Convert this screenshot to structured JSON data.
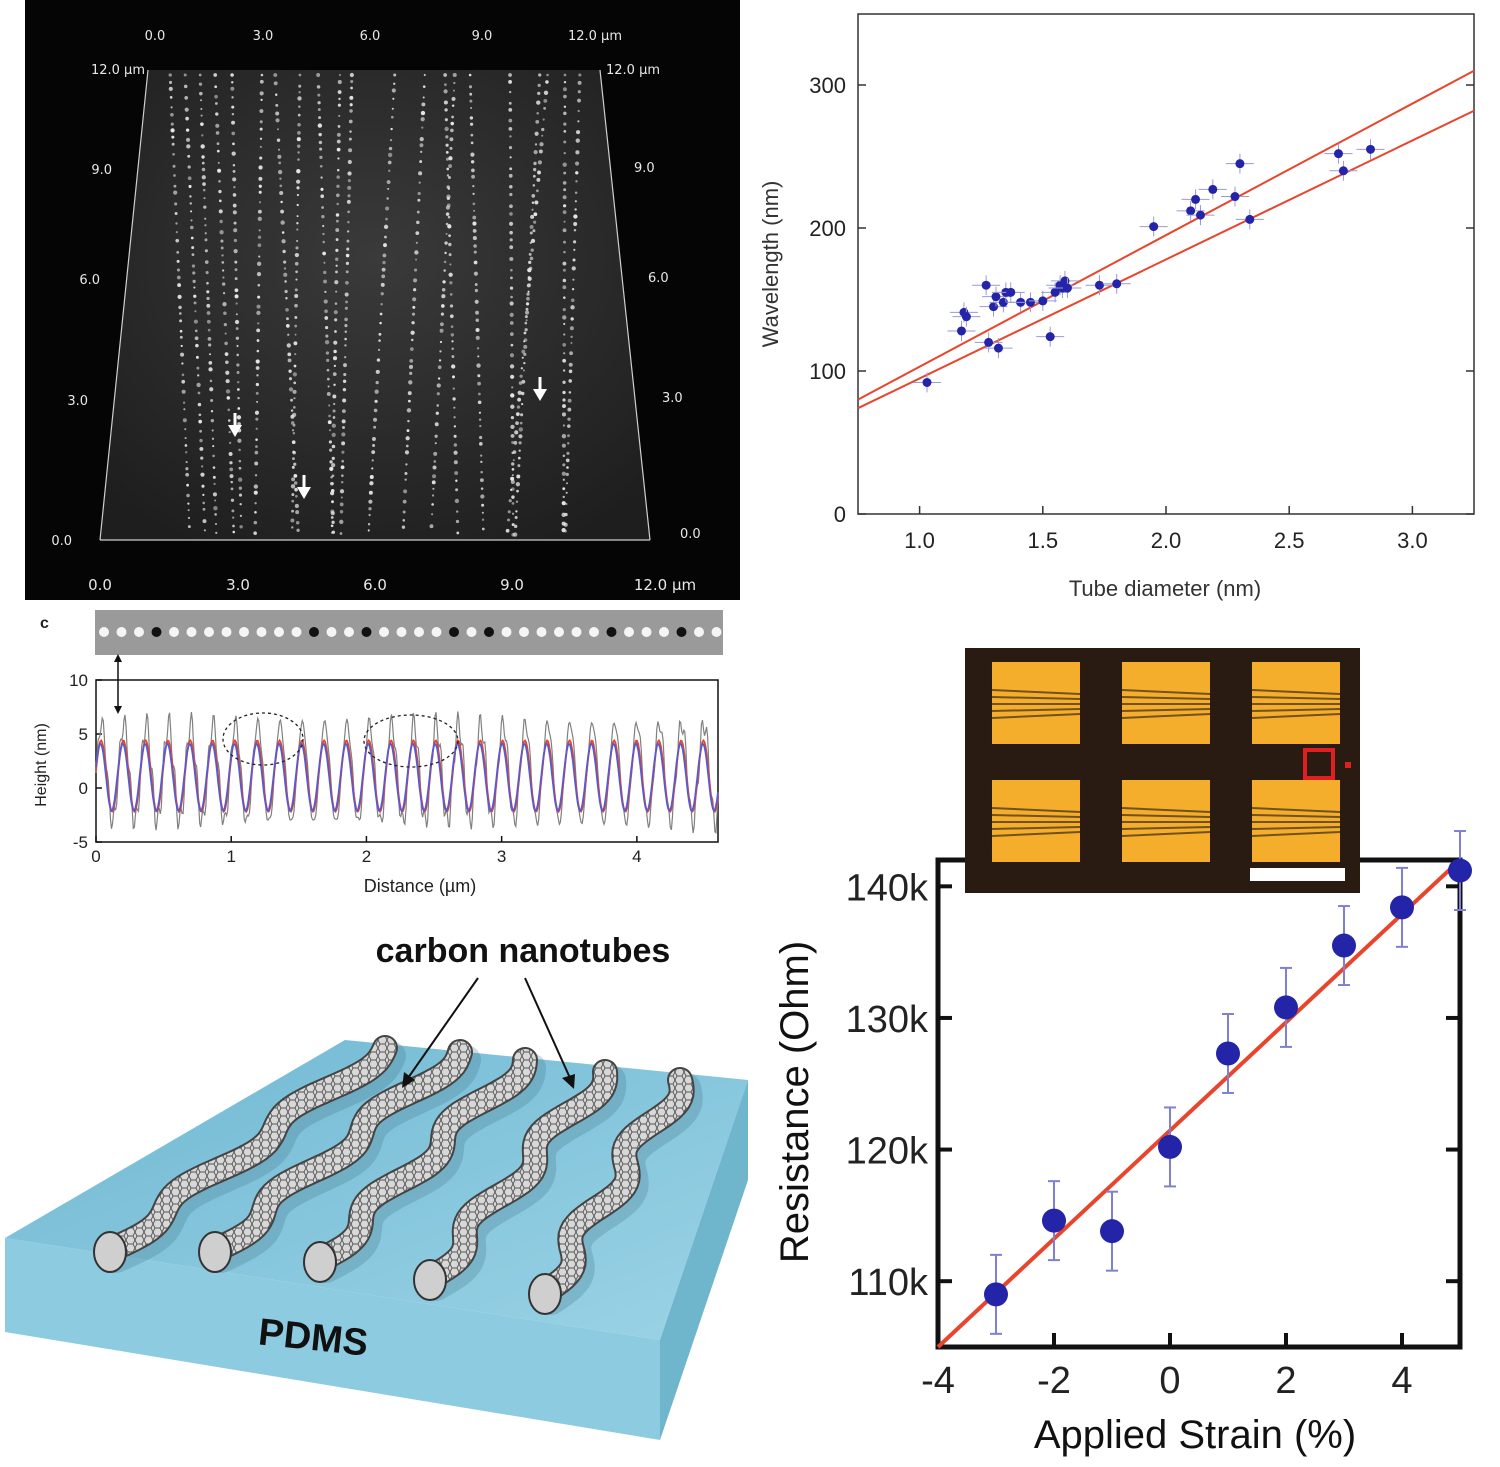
{
  "afm": {
    "top_ticks": [
      "0.0",
      "3.0",
      "6.0",
      "9.0",
      "12.0 µm"
    ],
    "bottom_ticks": [
      "0.0",
      "3.0",
      "6.0",
      "9.0",
      "12.0 µm"
    ],
    "left_ticks": [
      "0.0",
      "3.0",
      "6.0",
      "9.0",
      "12.0 µm"
    ],
    "right_ticks": [
      "0.0",
      "3.0",
      "6.0",
      "9.0",
      "12.0 µm"
    ]
  },
  "panel_c": {
    "label": "c"
  },
  "illustration": {
    "label_tubes": "carbon nanotubes",
    "label_substrate": "PDMS"
  },
  "colors": {
    "fit_line": "#e8452c",
    "marker": "#2424a8",
    "errorbar": "#9a9ad6",
    "pdms": "#8ccbe0",
    "gold": "#f5ae2b"
  },
  "chart_data": [
    {
      "type": "scatter",
      "xlabel": "Tube diameter (nm)",
      "ylabel": "Wavelength (nm)",
      "xlim": [
        0.75,
        3.25
      ],
      "ylim": [
        0,
        300
      ],
      "x_ticks": [
        "1.0",
        "1.5",
        "2.0",
        "2.5",
        "3.0"
      ],
      "y_ticks": [
        "0",
        "100",
        "200",
        "300"
      ],
      "points": [
        [
          1.03,
          92
        ],
        [
          1.17,
          128
        ],
        [
          1.18,
          141
        ],
        [
          1.19,
          138
        ],
        [
          1.27,
          160
        ],
        [
          1.28,
          120
        ],
        [
          1.3,
          145
        ],
        [
          1.31,
          152
        ],
        [
          1.32,
          116
        ],
        [
          1.34,
          148
        ],
        [
          1.35,
          155
        ],
        [
          1.37,
          155
        ],
        [
          1.41,
          148
        ],
        [
          1.45,
          148
        ],
        [
          1.5,
          149
        ],
        [
          1.53,
          124
        ],
        [
          1.55,
          155
        ],
        [
          1.57,
          160
        ],
        [
          1.58,
          158
        ],
        [
          1.59,
          163
        ],
        [
          1.6,
          158
        ],
        [
          1.73,
          160
        ],
        [
          1.8,
          161
        ],
        [
          1.95,
          201
        ],
        [
          2.1,
          212
        ],
        [
          2.12,
          220
        ],
        [
          2.14,
          209
        ],
        [
          2.19,
          227
        ],
        [
          2.28,
          222
        ],
        [
          2.3,
          245
        ],
        [
          2.34,
          206
        ],
        [
          2.7,
          252
        ],
        [
          2.72,
          240
        ],
        [
          2.83,
          255
        ]
      ],
      "fit_lines": [
        {
          "x": [
            0.75,
            3.25
          ],
          "y": [
            80,
            310
          ]
        },
        {
          "x": [
            0.75,
            3.25
          ],
          "y": [
            74,
            282
          ]
        }
      ],
      "grid": false
    },
    {
      "type": "line",
      "xlabel": "Distance (µm)",
      "ylabel": "Height (nm)",
      "xlim": [
        0,
        4.6
      ],
      "ylim": [
        -5,
        10
      ],
      "x_ticks": [
        "0",
        "1",
        "2",
        "3",
        "4"
      ],
      "y_ticks": [
        "-5",
        "0",
        "5",
        "10"
      ],
      "series": [
        {
          "color": "#808080",
          "amplitude": 4.6,
          "period": 0.165,
          "offset": 1.4
        },
        {
          "color": "#e8452c",
          "amplitude": 3.3,
          "period": 0.165,
          "offset": 1.1
        },
        {
          "color": "#5a5ad0",
          "amplitude": 3.1,
          "period": 0.165,
          "offset": 1.0
        }
      ],
      "grid": false
    },
    {
      "type": "scatter",
      "xlabel": "Applied Strain (%)",
      "ylabel": "Resistance  (Ohm)",
      "xlim": [
        -4,
        5
      ],
      "ylim": [
        105,
        142
      ],
      "x_ticks": [
        "-4",
        "-2",
        "0",
        "2",
        "4"
      ],
      "y_ticks": [
        "110k",
        "120k",
        "130k",
        "140k"
      ],
      "points": [
        [
          -3,
          109.0,
          3.0
        ],
        [
          -2,
          114.6,
          3.0
        ],
        [
          -1,
          113.8,
          3.0
        ],
        [
          0,
          120.2,
          3.0
        ],
        [
          1,
          127.3,
          3.0
        ],
        [
          2,
          130.8,
          3.0
        ],
        [
          3,
          135.5,
          3.0
        ],
        [
          4,
          138.4,
          3.0
        ],
        [
          5,
          141.2,
          3.0
        ]
      ],
      "fit_line": {
        "x": [
          -4,
          5
        ],
        "y": [
          105,
          142
        ]
      },
      "grid": false
    }
  ]
}
